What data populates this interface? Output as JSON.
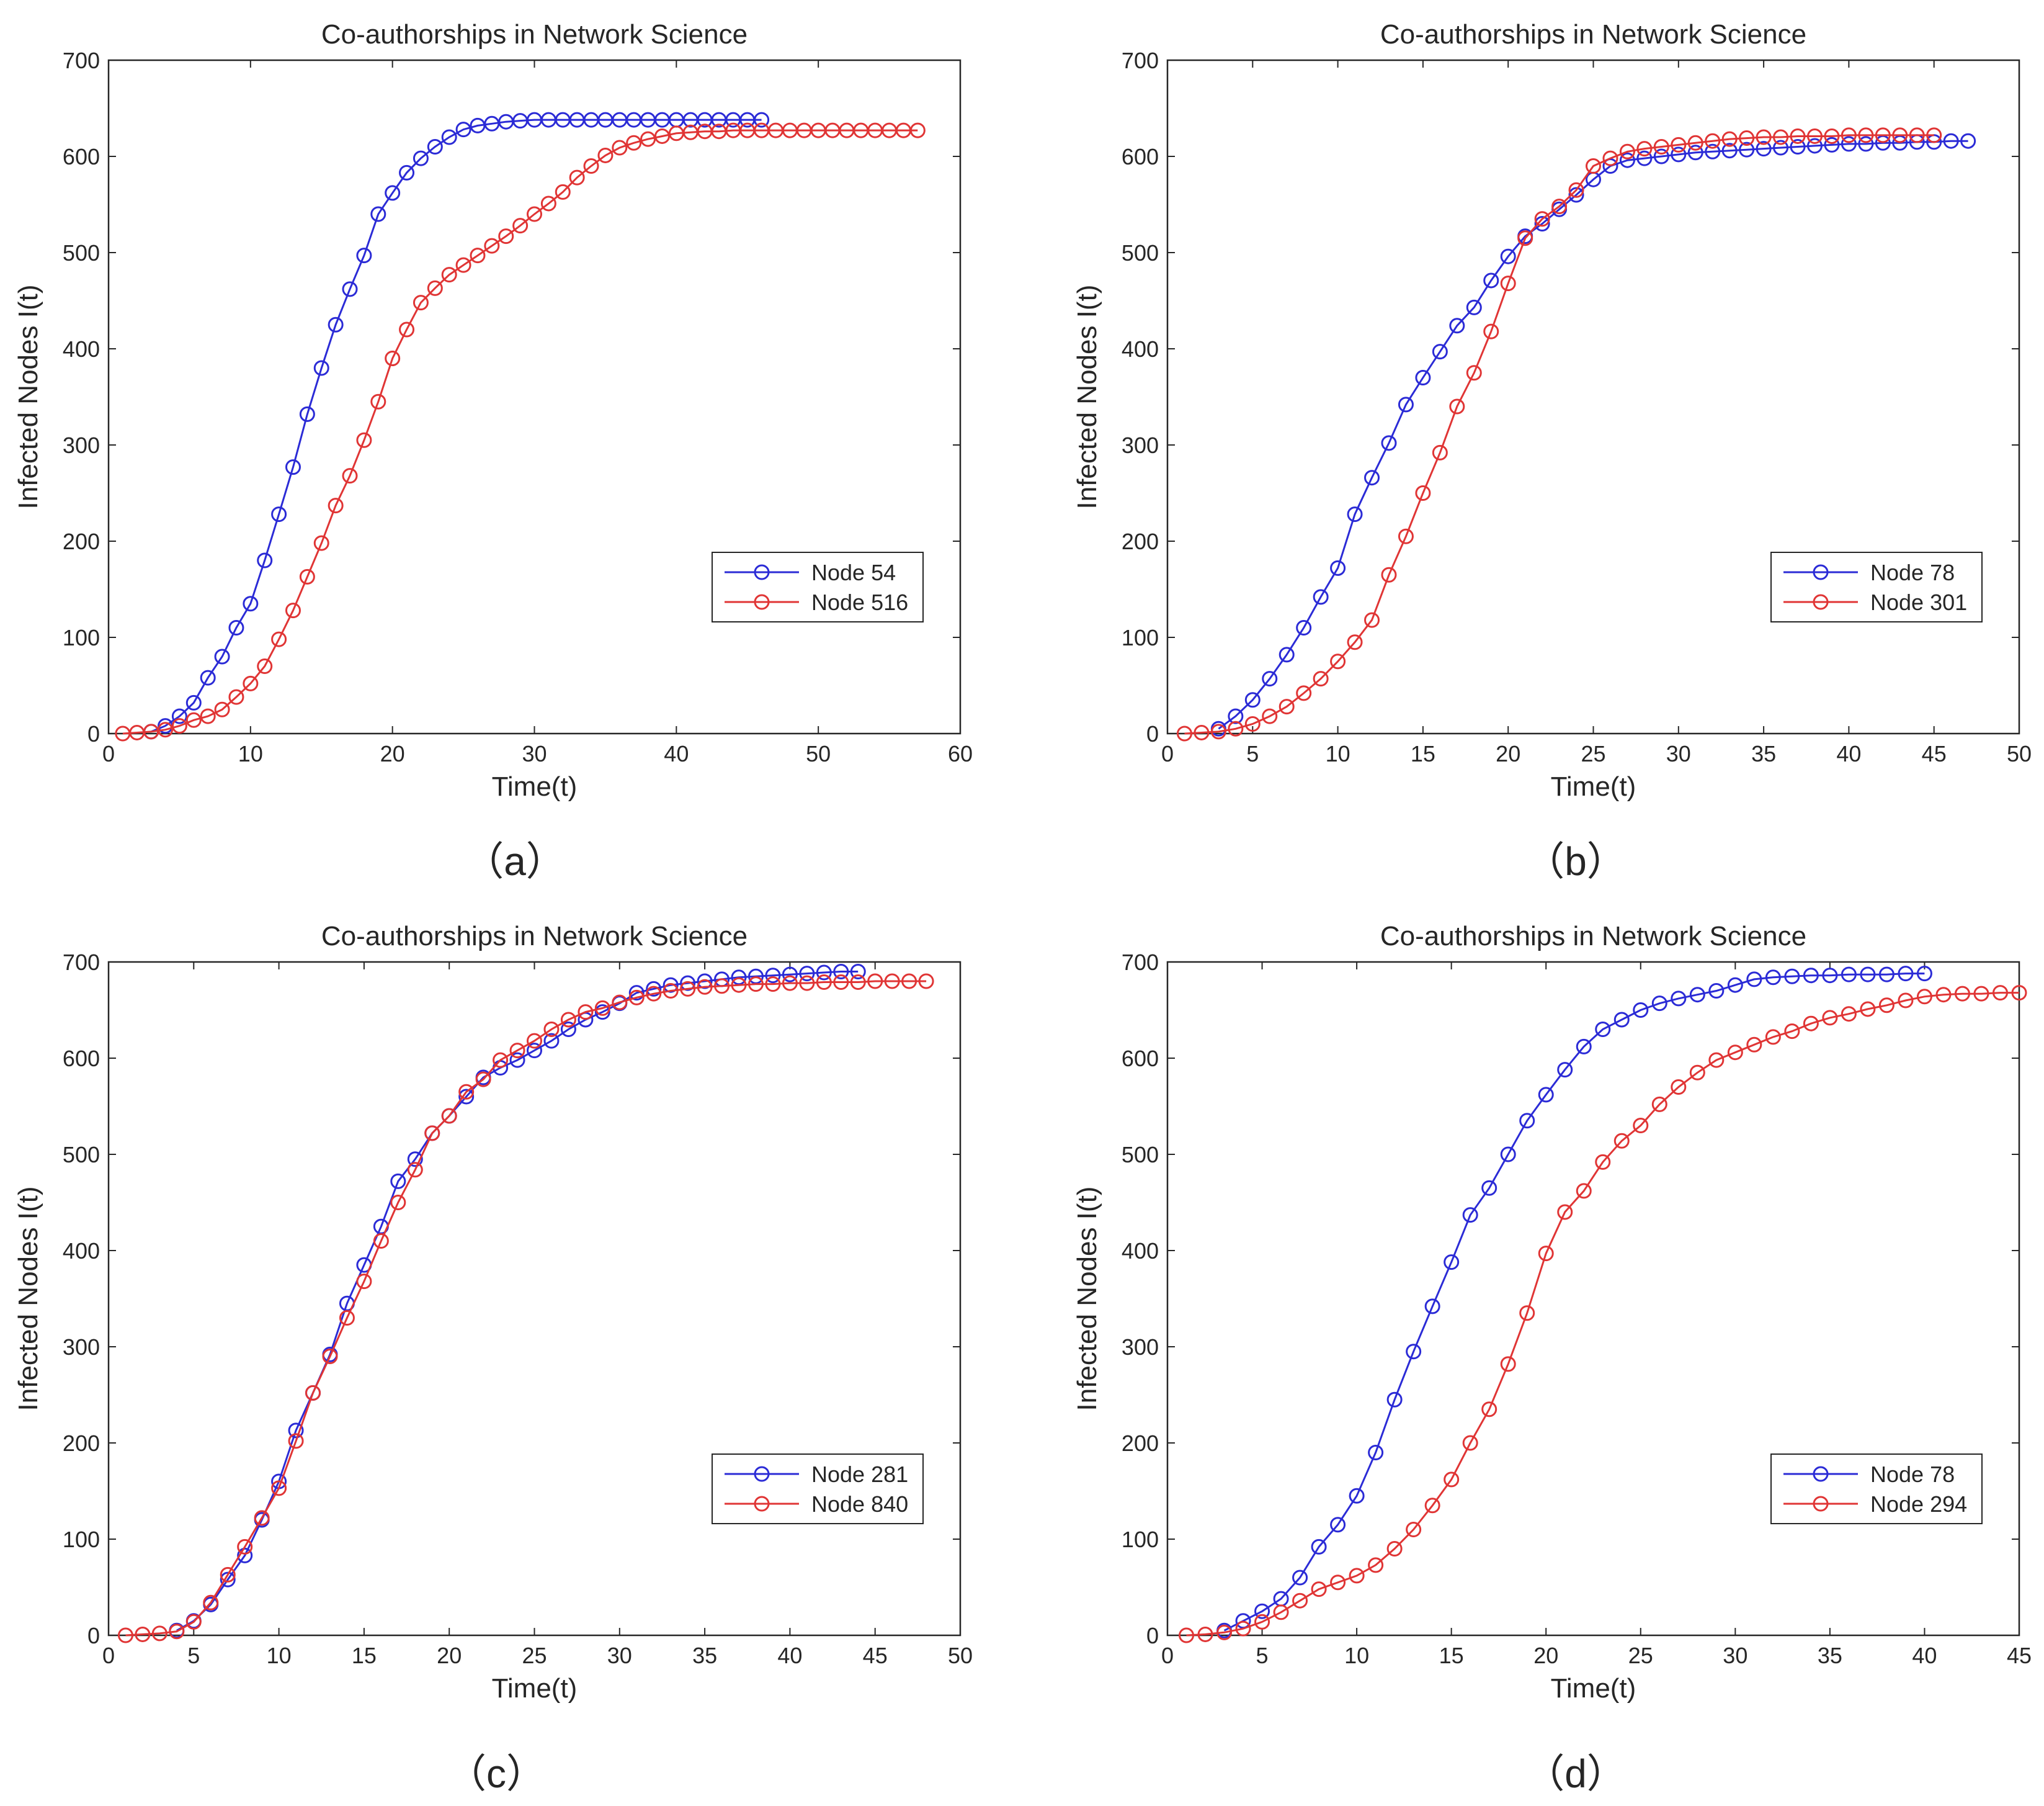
{
  "chart_data": [
    {
      "type": "line",
      "title": "Co-authorships in Network Science",
      "xlabel": "Time(t)",
      "ylabel": "Infected Nodes I(t)",
      "xlim": [
        0,
        60
      ],
      "ylim": [
        0,
        700
      ],
      "xticks": [
        0,
        10,
        20,
        30,
        40,
        50,
        60
      ],
      "yticks": [
        0,
        100,
        200,
        300,
        400,
        500,
        600,
        700
      ],
      "legend_position": "lower-right",
      "caption": "（a）",
      "series": [
        {
          "name": "Node 54",
          "color": "#2b2bd6",
          "x": [
            3,
            4,
            5,
            6,
            7,
            8,
            9,
            10,
            11,
            12,
            13,
            14,
            15,
            16,
            17,
            18,
            19,
            20,
            21,
            22,
            23,
            24,
            25,
            26,
            27,
            28,
            29,
            30,
            31,
            32,
            33,
            34,
            35,
            36,
            37,
            38,
            39,
            40,
            41,
            42,
            43,
            44,
            45,
            46
          ],
          "y": [
            2,
            8,
            18,
            32,
            58,
            80,
            110,
            135,
            180,
            228,
            277,
            332,
            380,
            425,
            462,
            497,
            540,
            562,
            583,
            598,
            610,
            620,
            628,
            632,
            634,
            636,
            637,
            638,
            638,
            638,
            638,
            638,
            638,
            638,
            638,
            638,
            638,
            638,
            638,
            638,
            638,
            638,
            638,
            638
          ]
        },
        {
          "name": "Node 516",
          "color": "#e03535",
          "x": [
            1,
            2,
            3,
            4,
            5,
            6,
            7,
            8,
            9,
            10,
            11,
            12,
            13,
            14,
            15,
            16,
            17,
            18,
            19,
            20,
            21,
            22,
            23,
            24,
            25,
            26,
            27,
            28,
            29,
            30,
            31,
            32,
            33,
            34,
            35,
            36,
            37,
            38,
            39,
            40,
            41,
            42,
            43,
            44,
            45,
            46,
            47,
            48,
            49,
            50,
            51,
            52,
            53,
            54,
            55,
            56,
            57
          ],
          "y": [
            0,
            1,
            2,
            4,
            8,
            14,
            18,
            25,
            38,
            52,
            70,
            98,
            128,
            163,
            198,
            237,
            268,
            305,
            345,
            390,
            420,
            448,
            463,
            477,
            487,
            497,
            507,
            517,
            528,
            540,
            551,
            563,
            578,
            590,
            601,
            609,
            614,
            618,
            621,
            624,
            625,
            626,
            626,
            627,
            627,
            627,
            627,
            627,
            627,
            627,
            627,
            627,
            627,
            627,
            627,
            627,
            627
          ]
        }
      ]
    },
    {
      "type": "line",
      "title": "Co-authorships in Network Science",
      "xlabel": "Time(t)",
      "ylabel": "Infected Nodes I(t)",
      "xlim": [
        0,
        50
      ],
      "ylim": [
        0,
        700
      ],
      "xticks": [
        0,
        5,
        10,
        15,
        20,
        25,
        30,
        35,
        40,
        45,
        50
      ],
      "yticks": [
        0,
        100,
        200,
        300,
        400,
        500,
        600,
        700
      ],
      "legend_position": "lower-right",
      "caption": "（b）",
      "series": [
        {
          "name": "Node 78",
          "color": "#2b2bd6",
          "x": [
            3,
            4,
            5,
            6,
            7,
            8,
            9,
            10,
            11,
            12,
            13,
            14,
            15,
            16,
            17,
            18,
            19,
            20,
            21,
            22,
            23,
            24,
            25,
            26,
            27,
            28,
            29,
            30,
            31,
            32,
            33,
            34,
            35,
            36,
            37,
            38,
            39,
            40,
            41,
            42,
            43,
            44,
            45,
            46,
            47
          ],
          "y": [
            5,
            18,
            35,
            57,
            82,
            110,
            142,
            172,
            228,
            266,
            302,
            342,
            370,
            397,
            424,
            443,
            471,
            496,
            517,
            530,
            545,
            560,
            576,
            590,
            596,
            598,
            600,
            602,
            604,
            605,
            606,
            607,
            608,
            609,
            610,
            611,
            612,
            613,
            613,
            614,
            614,
            615,
            615,
            616,
            616
          ]
        },
        {
          "name": "Node 301",
          "color": "#e03535",
          "x": [
            1,
            2,
            3,
            4,
            5,
            6,
            7,
            8,
            9,
            10,
            11,
            12,
            13,
            14,
            15,
            16,
            17,
            18,
            19,
            20,
            21,
            22,
            23,
            24,
            25,
            26,
            27,
            28,
            29,
            30,
            31,
            32,
            33,
            34,
            35,
            36,
            37,
            38,
            39,
            40,
            41,
            42,
            43,
            44,
            45
          ],
          "y": [
            0,
            1,
            2,
            5,
            10,
            18,
            28,
            42,
            57,
            75,
            95,
            118,
            165,
            205,
            250,
            292,
            340,
            375,
            418,
            468,
            515,
            535,
            548,
            565,
            590,
            598,
            605,
            608,
            610,
            612,
            614,
            616,
            618,
            619,
            620,
            620,
            621,
            621,
            621,
            622,
            622,
            622,
            622,
            622,
            622
          ]
        }
      ]
    },
    {
      "type": "line",
      "title": "Co-authorships in Network Science",
      "xlabel": "Time(t)",
      "ylabel": "Infected Nodes I(t)",
      "xlim": [
        0,
        50
      ],
      "ylim": [
        0,
        700
      ],
      "xticks": [
        0,
        5,
        10,
        15,
        20,
        25,
        30,
        35,
        40,
        45,
        50
      ],
      "yticks": [
        0,
        100,
        200,
        300,
        400,
        500,
        600,
        700
      ],
      "legend_position": "lower-right",
      "caption": "（c）",
      "series": [
        {
          "name": "Node 281",
          "color": "#2b2bd6",
          "x": [
            4,
            5,
            6,
            7,
            8,
            9,
            10,
            11,
            12,
            13,
            14,
            15,
            16,
            17,
            18,
            19,
            20,
            21,
            22,
            23,
            24,
            25,
            26,
            27,
            28,
            29,
            30,
            31,
            32,
            33,
            34,
            35,
            36,
            37,
            38,
            39,
            40,
            41,
            42,
            43,
            44
          ],
          "y": [
            5,
            15,
            32,
            58,
            83,
            120,
            160,
            213,
            252,
            292,
            345,
            385,
            425,
            472,
            495,
            522,
            540,
            560,
            580,
            590,
            598,
            608,
            618,
            630,
            640,
            648,
            657,
            668,
            672,
            676,
            678,
            680,
            682,
            684,
            685,
            686,
            687,
            688,
            689,
            690,
            690
          ]
        },
        {
          "name": "Node 840",
          "color": "#e03535",
          "x": [
            1,
            2,
            3,
            4,
            5,
            6,
            7,
            8,
            9,
            10,
            11,
            12,
            13,
            14,
            15,
            16,
            17,
            18,
            19,
            20,
            21,
            22,
            23,
            24,
            25,
            26,
            27,
            28,
            29,
            30,
            31,
            32,
            33,
            34,
            35,
            36,
            37,
            38,
            39,
            40,
            41,
            42,
            43,
            44,
            45,
            46,
            47,
            48
          ],
          "y": [
            0,
            1,
            2,
            4,
            14,
            34,
            63,
            92,
            122,
            153,
            202,
            252,
            290,
            330,
            368,
            410,
            450,
            484,
            522,
            540,
            565,
            578,
            598,
            608,
            618,
            630,
            640,
            648,
            652,
            658,
            663,
            667,
            670,
            672,
            674,
            675,
            676,
            677,
            677,
            678,
            678,
            679,
            679,
            679,
            680,
            680,
            680,
            680
          ]
        }
      ]
    },
    {
      "type": "line",
      "title": "Co-authorships in Network Science",
      "xlabel": "Time(t)",
      "ylabel": "Infected Nodes I(t)",
      "xlim": [
        0,
        45
      ],
      "ylim": [
        0,
        700
      ],
      "xticks": [
        0,
        5,
        10,
        15,
        20,
        25,
        30,
        35,
        40,
        45
      ],
      "yticks": [
        0,
        100,
        200,
        300,
        400,
        500,
        600,
        700
      ],
      "legend_position": "lower-right",
      "caption": "（d）",
      "series": [
        {
          "name": "Node 78",
          "color": "#2b2bd6",
          "x": [
            3,
            4,
            5,
            6,
            7,
            8,
            9,
            10,
            11,
            12,
            13,
            14,
            15,
            16,
            17,
            18,
            19,
            20,
            21,
            22,
            23,
            24,
            25,
            26,
            27,
            28,
            29,
            30,
            31,
            32,
            33,
            34,
            35,
            36,
            37,
            38,
            39,
            40
          ],
          "y": [
            5,
            15,
            25,
            38,
            60,
            92,
            115,
            145,
            190,
            245,
            295,
            342,
            388,
            437,
            465,
            500,
            535,
            562,
            588,
            612,
            630,
            640,
            650,
            657,
            662,
            666,
            670,
            676,
            682,
            684,
            685,
            686,
            686,
            687,
            687,
            687,
            688,
            688
          ]
        },
        {
          "name": "Node 294",
          "color": "#e03535",
          "x": [
            1,
            2,
            3,
            4,
            5,
            6,
            7,
            8,
            9,
            10,
            11,
            12,
            13,
            14,
            15,
            16,
            17,
            18,
            19,
            20,
            21,
            22,
            23,
            24,
            25,
            26,
            27,
            28,
            29,
            30,
            31,
            32,
            33,
            34,
            35,
            36,
            37,
            38,
            39,
            40,
            41,
            42,
            43,
            44,
            45
          ],
          "y": [
            0,
            1,
            3,
            7,
            14,
            24,
            36,
            48,
            55,
            62,
            73,
            90,
            110,
            135,
            162,
            200,
            235,
            282,
            335,
            397,
            440,
            462,
            492,
            514,
            530,
            552,
            570,
            585,
            598,
            606,
            614,
            622,
            628,
            636,
            642,
            646,
            651,
            655,
            660,
            664,
            666,
            667,
            667,
            668,
            668
          ]
        }
      ]
    }
  ]
}
